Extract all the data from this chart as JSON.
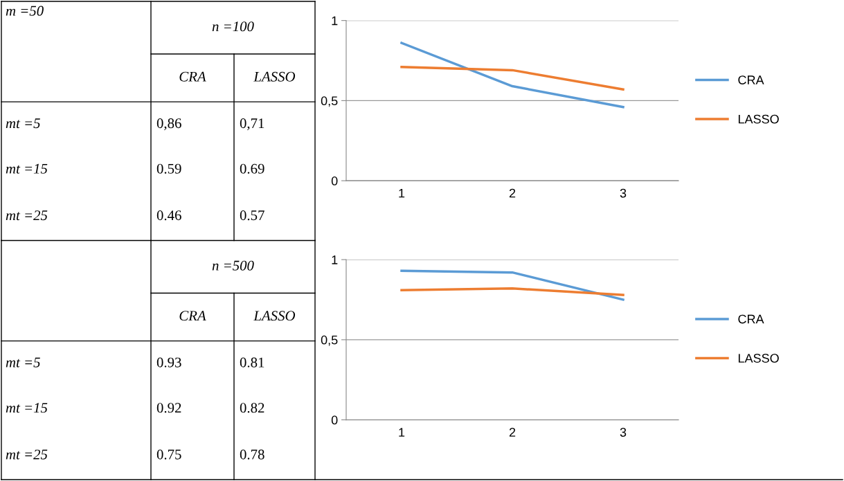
{
  "chart_data": [
    {
      "type": "line",
      "categories": [
        "1",
        "2",
        "3"
      ],
      "series": [
        {
          "name": "CRA",
          "color": "#5b9bd5",
          "values": [
            0.86,
            0.59,
            0.46
          ]
        },
        {
          "name": "LASSO",
          "color": "#ed7d31",
          "values": [
            0.71,
            0.69,
            0.57
          ]
        }
      ],
      "ylim": [
        0,
        1
      ],
      "yticks": [
        0,
        {
          "value": 0.5,
          "label": "0,5"
        },
        1
      ],
      "grid": "y",
      "legend": "right",
      "marker": "none",
      "annotations": [
        "m =50",
        "n =100",
        "mt =5",
        "0,86",
        "0,71",
        "mt =15",
        "0.59",
        "0.69",
        "mt =25",
        "0.46",
        "0.57"
      ]
    },
    {
      "type": "line",
      "categories": [
        "1",
        "2",
        "3"
      ],
      "series": [
        {
          "name": "CRA",
          "color": "#5b9bd5",
          "values": [
            0.93,
            0.92,
            0.75
          ]
        },
        {
          "name": "LASSO",
          "color": "#ed7d31",
          "values": [
            0.81,
            0.82,
            0.78
          ]
        }
      ],
      "ylim": [
        0,
        1
      ],
      "yticks": [
        0,
        {
          "value": 0.5,
          "label": "0,5"
        },
        1
      ],
      "grid": "y",
      "legend": "right",
      "marker": "none",
      "annotations": [
        "n =500",
        "mt =5",
        "0.93",
        "0.81",
        "mt =15",
        "0.92",
        "0.82",
        "mt =25",
        "0.75",
        "0.78"
      ]
    }
  ]
}
